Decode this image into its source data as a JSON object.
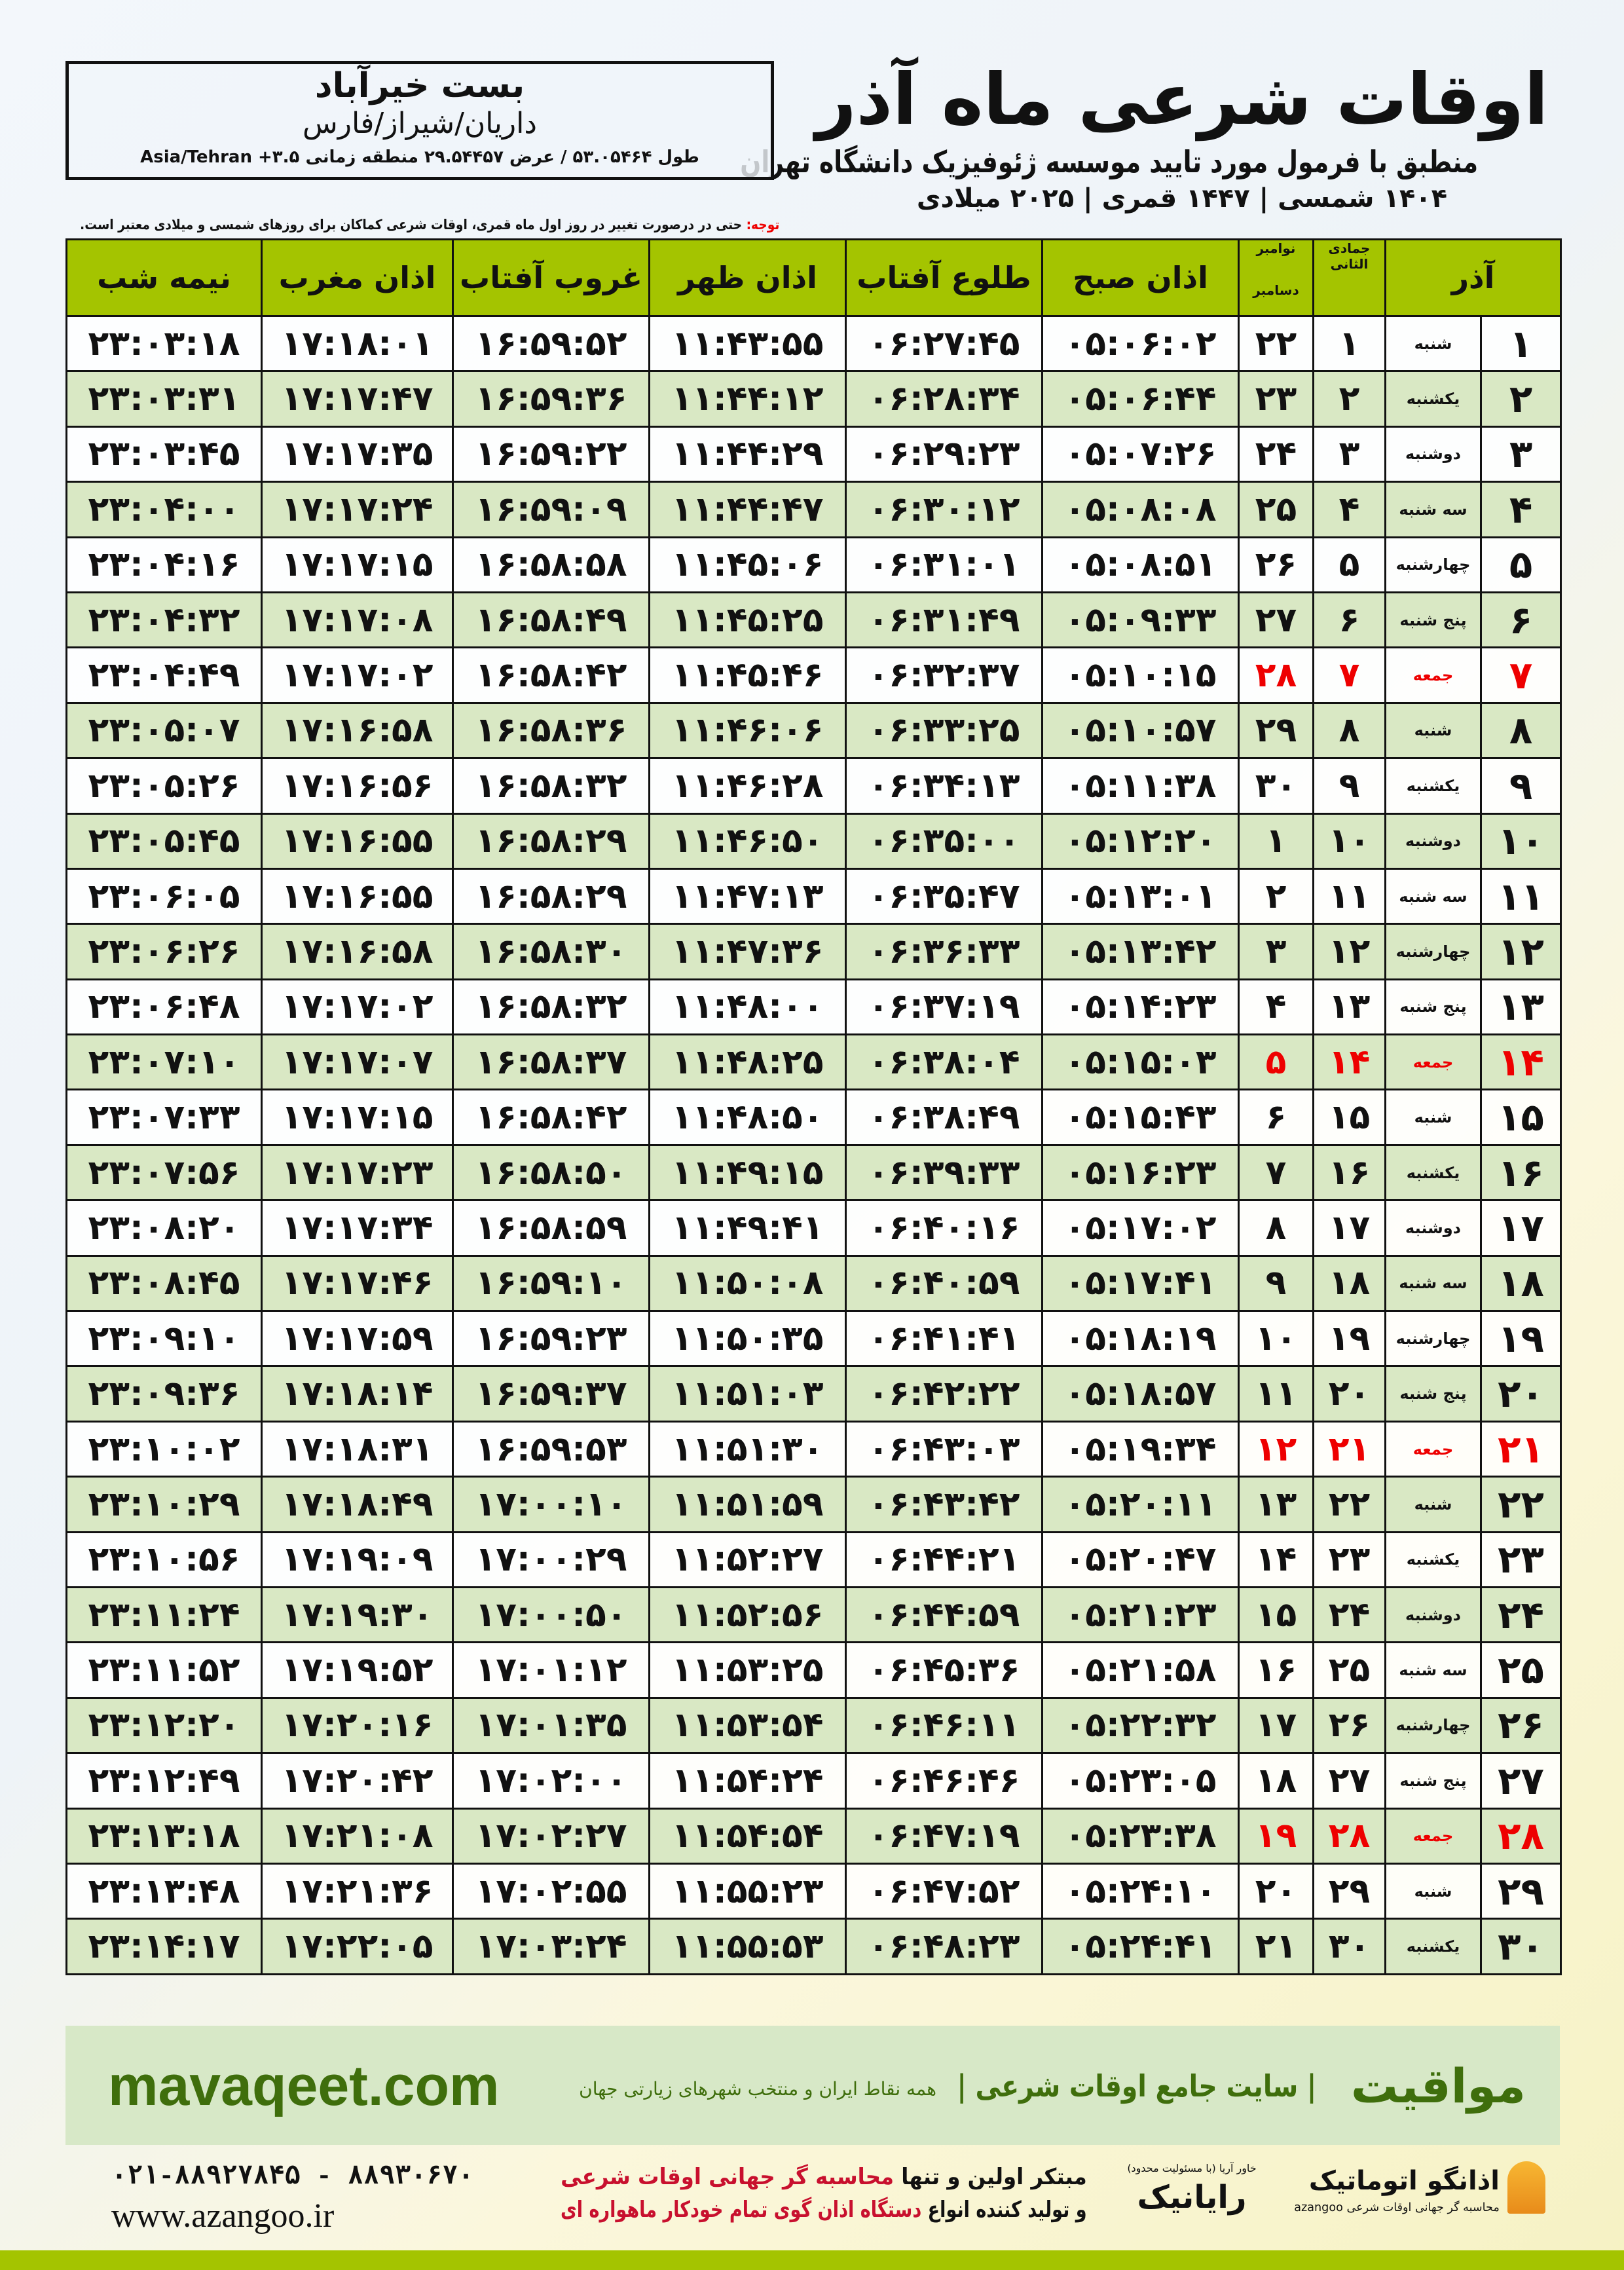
{
  "header": {
    "title": "اوقات شرعی ماه آذر",
    "subtitle": "منطبق با فرمول مورد تایید موسسه ژئوفیزیک دانشگاه تهران",
    "dates": "۱۴۰۴ شمسی | ۱۴۴۷ قمری | ۲۰۲۵ میلادی"
  },
  "location": {
    "name": "بست خیرآباد",
    "path": "داریان/شیراز/فارس",
    "coords": "طول ۵۳.۰۵۴۶۴ / عرض ۲۹.۵۴۴۵۷ منطقه زمانی ۳.۵+ Asia/Tehran"
  },
  "note": {
    "label": "توجه:",
    "text": " حتی در درصورت تغییر در روز اول ماه قمری، اوقات شرعی کماکان برای روزهای شمسی و میلادی معتبر است."
  },
  "columns": {
    "azar": "آذر",
    "jumada": "جمادی الثانی",
    "nov": "نوامبر",
    "dec": "دسامبر",
    "sobh": "اذان صبح",
    "tolu": "طلوع آفتاب",
    "zohr": "اذان ظهر",
    "ghorub": "غروب آفتاب",
    "maghreb": "اذان مغرب",
    "nimeshab": "نیمه شب"
  },
  "colors": {
    "header_green": "#a4c400",
    "row_green": "#d9e8c4",
    "friday_red": "#e00000",
    "brand_green": "#3f6e0c"
  },
  "rows": [
    [
      "۱",
      "شنبه",
      "۱",
      "۲۲",
      "۰۵:۰۶:۰۲",
      "۰۶:۲۷:۴۵",
      "۱۱:۴۳:۵۵",
      "۱۶:۵۹:۵۲",
      "۱۷:۱۸:۰۱",
      "۲۳:۰۳:۱۸"
    ],
    [
      "۲",
      "یکشنبه",
      "۲",
      "۲۳",
      "۰۵:۰۶:۴۴",
      "۰۶:۲۸:۳۴",
      "۱۱:۴۴:۱۲",
      "۱۶:۵۹:۳۶",
      "۱۷:۱۷:۴۷",
      "۲۳:۰۳:۳۱"
    ],
    [
      "۳",
      "دوشنبه",
      "۳",
      "۲۴",
      "۰۵:۰۷:۲۶",
      "۰۶:۲۹:۲۳",
      "۱۱:۴۴:۲۹",
      "۱۶:۵۹:۲۲",
      "۱۷:۱۷:۳۵",
      "۲۳:۰۳:۴۵"
    ],
    [
      "۴",
      "سه شنبه",
      "۴",
      "۲۵",
      "۰۵:۰۸:۰۸",
      "۰۶:۳۰:۱۲",
      "۱۱:۴۴:۴۷",
      "۱۶:۵۹:۰۹",
      "۱۷:۱۷:۲۴",
      "۲۳:۰۴:۰۰"
    ],
    [
      "۵",
      "چهارشنبه",
      "۵",
      "۲۶",
      "۰۵:۰۸:۵۱",
      "۰۶:۳۱:۰۱",
      "۱۱:۴۵:۰۶",
      "۱۶:۵۸:۵۸",
      "۱۷:۱۷:۱۵",
      "۲۳:۰۴:۱۶"
    ],
    [
      "۶",
      "پنج شنبه",
      "۶",
      "۲۷",
      "۰۵:۰۹:۳۳",
      "۰۶:۳۱:۴۹",
      "۱۱:۴۵:۲۵",
      "۱۶:۵۸:۴۹",
      "۱۷:۱۷:۰۸",
      "۲۳:۰۴:۳۲"
    ],
    [
      "۷",
      "جمعه",
      "۷",
      "۲۸",
      "۰۵:۱۰:۱۵",
      "۰۶:۳۲:۳۷",
      "۱۱:۴۵:۴۶",
      "۱۶:۵۸:۴۲",
      "۱۷:۱۷:۰۲",
      "۲۳:۰۴:۴۹"
    ],
    [
      "۸",
      "شنبه",
      "۸",
      "۲۹",
      "۰۵:۱۰:۵۷",
      "۰۶:۳۳:۲۵",
      "۱۱:۴۶:۰۶",
      "۱۶:۵۸:۳۶",
      "۱۷:۱۶:۵۸",
      "۲۳:۰۵:۰۷"
    ],
    [
      "۹",
      "یکشنبه",
      "۹",
      "۳۰",
      "۰۵:۱۱:۳۸",
      "۰۶:۳۴:۱۳",
      "۱۱:۴۶:۲۸",
      "۱۶:۵۸:۳۲",
      "۱۷:۱۶:۵۶",
      "۲۳:۰۵:۲۶"
    ],
    [
      "۱۰",
      "دوشنبه",
      "۱۰",
      "۱",
      "۰۵:۱۲:۲۰",
      "۰۶:۳۵:۰۰",
      "۱۱:۴۶:۵۰",
      "۱۶:۵۸:۲۹",
      "۱۷:۱۶:۵۵",
      "۲۳:۰۵:۴۵"
    ],
    [
      "۱۱",
      "سه شنبه",
      "۱۱",
      "۲",
      "۰۵:۱۳:۰۱",
      "۰۶:۳۵:۴۷",
      "۱۱:۴۷:۱۳",
      "۱۶:۵۸:۲۹",
      "۱۷:۱۶:۵۵",
      "۲۳:۰۶:۰۵"
    ],
    [
      "۱۲",
      "چهارشنبه",
      "۱۲",
      "۳",
      "۰۵:۱۳:۴۲",
      "۰۶:۳۶:۳۳",
      "۱۱:۴۷:۳۶",
      "۱۶:۵۸:۳۰",
      "۱۷:۱۶:۵۸",
      "۲۳:۰۶:۲۶"
    ],
    [
      "۱۳",
      "پنج شنبه",
      "۱۳",
      "۴",
      "۰۵:۱۴:۲۳",
      "۰۶:۳۷:۱۹",
      "۱۱:۴۸:۰۰",
      "۱۶:۵۸:۳۲",
      "۱۷:۱۷:۰۲",
      "۲۳:۰۶:۴۸"
    ],
    [
      "۱۴",
      "جمعه",
      "۱۴",
      "۵",
      "۰۵:۱۵:۰۳",
      "۰۶:۳۸:۰۴",
      "۱۱:۴۸:۲۵",
      "۱۶:۵۸:۳۷",
      "۱۷:۱۷:۰۷",
      "۲۳:۰۷:۱۰"
    ],
    [
      "۱۵",
      "شنبه",
      "۱۵",
      "۶",
      "۰۵:۱۵:۴۳",
      "۰۶:۳۸:۴۹",
      "۱۱:۴۸:۵۰",
      "۱۶:۵۸:۴۲",
      "۱۷:۱۷:۱۵",
      "۲۳:۰۷:۳۳"
    ],
    [
      "۱۶",
      "یکشنبه",
      "۱۶",
      "۷",
      "۰۵:۱۶:۲۳",
      "۰۶:۳۹:۳۳",
      "۱۱:۴۹:۱۵",
      "۱۶:۵۸:۵۰",
      "۱۷:۱۷:۲۳",
      "۲۳:۰۷:۵۶"
    ],
    [
      "۱۷",
      "دوشنبه",
      "۱۷",
      "۸",
      "۰۵:۱۷:۰۲",
      "۰۶:۴۰:۱۶",
      "۱۱:۴۹:۴۱",
      "۱۶:۵۸:۵۹",
      "۱۷:۱۷:۳۴",
      "۲۳:۰۸:۲۰"
    ],
    [
      "۱۸",
      "سه شنبه",
      "۱۸",
      "۹",
      "۰۵:۱۷:۴۱",
      "۰۶:۴۰:۵۹",
      "۱۱:۵۰:۰۸",
      "۱۶:۵۹:۱۰",
      "۱۷:۱۷:۴۶",
      "۲۳:۰۸:۴۵"
    ],
    [
      "۱۹",
      "چهارشنبه",
      "۱۹",
      "۱۰",
      "۰۵:۱۸:۱۹",
      "۰۶:۴۱:۴۱",
      "۱۱:۵۰:۳۵",
      "۱۶:۵۹:۲۳",
      "۱۷:۱۷:۵۹",
      "۲۳:۰۹:۱۰"
    ],
    [
      "۲۰",
      "پنج شنبه",
      "۲۰",
      "۱۱",
      "۰۵:۱۸:۵۷",
      "۰۶:۴۲:۲۲",
      "۱۱:۵۱:۰۳",
      "۱۶:۵۹:۳۷",
      "۱۷:۱۸:۱۴",
      "۲۳:۰۹:۳۶"
    ],
    [
      "۲۱",
      "جمعه",
      "۲۱",
      "۱۲",
      "۰۵:۱۹:۳۴",
      "۰۶:۴۳:۰۳",
      "۱۱:۵۱:۳۰",
      "۱۶:۵۹:۵۳",
      "۱۷:۱۸:۳۱",
      "۲۳:۱۰:۰۲"
    ],
    [
      "۲۲",
      "شنبه",
      "۲۲",
      "۱۳",
      "۰۵:۲۰:۱۱",
      "۰۶:۴۳:۴۲",
      "۱۱:۵۱:۵۹",
      "۱۷:۰۰:۱۰",
      "۱۷:۱۸:۴۹",
      "۲۳:۱۰:۲۹"
    ],
    [
      "۲۳",
      "یکشنبه",
      "۲۳",
      "۱۴",
      "۰۵:۲۰:۴۷",
      "۰۶:۴۴:۲۱",
      "۱۱:۵۲:۲۷",
      "۱۷:۰۰:۲۹",
      "۱۷:۱۹:۰۹",
      "۲۳:۱۰:۵۶"
    ],
    [
      "۲۴",
      "دوشنبه",
      "۲۴",
      "۱۵",
      "۰۵:۲۱:۲۳",
      "۰۶:۴۴:۵۹",
      "۱۱:۵۲:۵۶",
      "۱۷:۰۰:۵۰",
      "۱۷:۱۹:۳۰",
      "۲۳:۱۱:۲۴"
    ],
    [
      "۲۵",
      "سه شنبه",
      "۲۵",
      "۱۶",
      "۰۵:۲۱:۵۸",
      "۰۶:۴۵:۳۶",
      "۱۱:۵۳:۲۵",
      "۱۷:۰۱:۱۲",
      "۱۷:۱۹:۵۲",
      "۲۳:۱۱:۵۲"
    ],
    [
      "۲۶",
      "چهارشنبه",
      "۲۶",
      "۱۷",
      "۰۵:۲۲:۳۲",
      "۰۶:۴۶:۱۱",
      "۱۱:۵۳:۵۴",
      "۱۷:۰۱:۳۵",
      "۱۷:۲۰:۱۶",
      "۲۳:۱۲:۲۰"
    ],
    [
      "۲۷",
      "پنج شنبه",
      "۲۷",
      "۱۸",
      "۰۵:۲۳:۰۵",
      "۰۶:۴۶:۴۶",
      "۱۱:۵۴:۲۴",
      "۱۷:۰۲:۰۰",
      "۱۷:۲۰:۴۲",
      "۲۳:۱۲:۴۹"
    ],
    [
      "۲۸",
      "جمعه",
      "۲۸",
      "۱۹",
      "۰۵:۲۳:۳۸",
      "۰۶:۴۷:۱۹",
      "۱۱:۵۴:۵۴",
      "۱۷:۰۲:۲۷",
      "۱۷:۲۱:۰۸",
      "۲۳:۱۳:۱۸"
    ],
    [
      "۲۹",
      "شنبه",
      "۲۹",
      "۲۰",
      "۰۵:۲۴:۱۰",
      "۰۶:۴۷:۵۲",
      "۱۱:۵۵:۲۳",
      "۱۷:۰۲:۵۵",
      "۱۷:۲۱:۳۶",
      "۲۳:۱۳:۴۸"
    ],
    [
      "۳۰",
      "یکشنبه",
      "۳۰",
      "۲۱",
      "۰۵:۲۴:۴۱",
      "۰۶:۴۸:۲۳",
      "۱۱:۵۵:۵۳",
      "۱۷:۰۳:۲۴",
      "۱۷:۲۲:۰۵",
      "۲۳:۱۴:۱۷"
    ]
  ],
  "friday_label": "جمعه",
  "footer": {
    "site": "mavaqeet.com",
    "brand": "مواقیت",
    "tagline": "| سایت جامع اوقات شرعی |",
    "tagline_sub": "همه نقاط ایران و منتخب شهرهای زیارتی جهان",
    "phone": "۰۲۱-۸۸۹۲۷۸۴۵ - ۸۸۹۳۰۶۷۰",
    "web": "www.azangoo.ir",
    "promo1a": "مبتکر اولین و تنها ",
    "promo1b": "محاسبه گر جهانی اوقات شرعی",
    "promo2a": "و تولید کننده انواع ",
    "promo2b": "دستگاه اذان گوی تمام خودکار ماهواره ای",
    "logo_rayanik": "رایانیک",
    "logo_rayanik_sub": "خاور آریا (با مسئولیت محدود)",
    "logo_azangoo": "اذانگو اتوماتیک",
    "logo_azangoo_sub": "محاسبه گر جهانی اوقات شرعی azangoo"
  }
}
